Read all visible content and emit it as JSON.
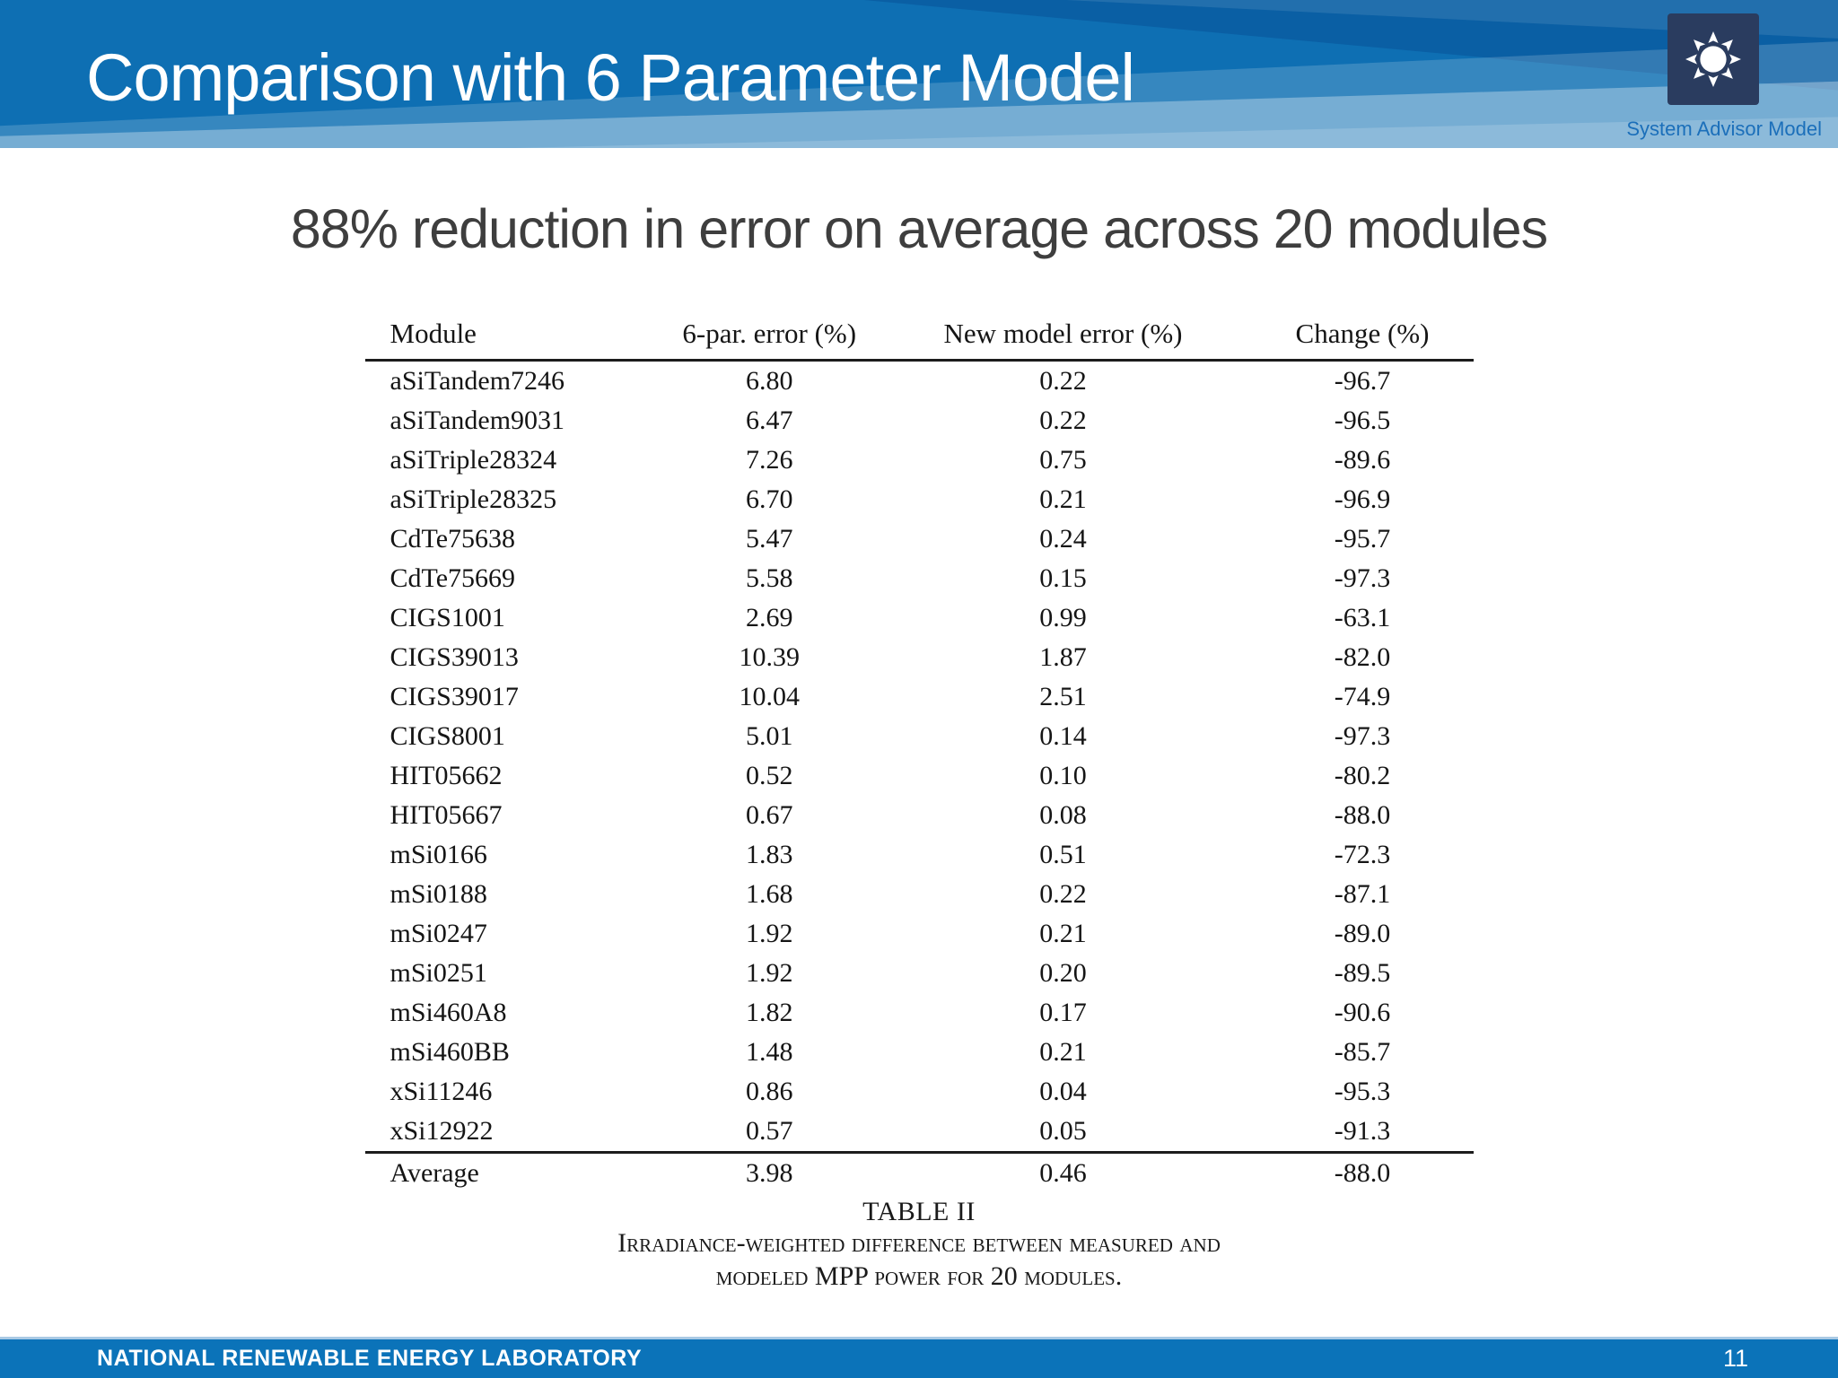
{
  "header": {
    "title": "Comparison with 6 Parameter Model",
    "logo_caption": "System Advisor Model"
  },
  "main": {
    "subtitle": "88% reduction in error on average across 20 modules"
  },
  "table": {
    "columns": [
      "Module",
      "6-par. error (%)",
      "New model error (%)",
      "Change (%)"
    ],
    "rows": [
      [
        "aSiTandem7246",
        "6.80",
        "0.22",
        "-96.7"
      ],
      [
        "aSiTandem9031",
        "6.47",
        "0.22",
        "-96.5"
      ],
      [
        "aSiTriple28324",
        "7.26",
        "0.75",
        "-89.6"
      ],
      [
        "aSiTriple28325",
        "6.70",
        "0.21",
        "-96.9"
      ],
      [
        "CdTe75638",
        "5.47",
        "0.24",
        "-95.7"
      ],
      [
        "CdTe75669",
        "5.58",
        "0.15",
        "-97.3"
      ],
      [
        "CIGS1001",
        "2.69",
        "0.99",
        "-63.1"
      ],
      [
        "CIGS39013",
        "10.39",
        "1.87",
        "-82.0"
      ],
      [
        "CIGS39017",
        "10.04",
        "2.51",
        "-74.9"
      ],
      [
        "CIGS8001",
        "5.01",
        "0.14",
        "-97.3"
      ],
      [
        "HIT05662",
        "0.52",
        "0.10",
        "-80.2"
      ],
      [
        "HIT05667",
        "0.67",
        "0.08",
        "-88.0"
      ],
      [
        "mSi0166",
        "1.83",
        "0.51",
        "-72.3"
      ],
      [
        "mSi0188",
        "1.68",
        "0.22",
        "-87.1"
      ],
      [
        "mSi0247",
        "1.92",
        "0.21",
        "-89.0"
      ],
      [
        "mSi0251",
        "1.92",
        "0.20",
        "-89.5"
      ],
      [
        "mSi460A8",
        "1.82",
        "0.17",
        "-90.6"
      ],
      [
        "mSi460BB",
        "1.48",
        "0.21",
        "-85.7"
      ],
      [
        "xSi11246",
        "0.86",
        "0.04",
        "-95.3"
      ],
      [
        "xSi12922",
        "0.57",
        "0.05",
        "-91.3"
      ]
    ],
    "summary_row": [
      "Average",
      "3.98",
      "0.46",
      "-88.0"
    ],
    "caption_title": "TABLE II",
    "caption_line1": "Irradiance-weighted difference between measured and",
    "caption_line2": "modeled MPP power for 20 modules."
  },
  "footer": {
    "organization": "NATIONAL RENEWABLE ENERGY LABORATORY",
    "page_number": "11"
  },
  "colors": {
    "header_blue": "#0e6fb3",
    "header_dark_blue": "#0a5fa4",
    "header_light_band": "#7fb2dd",
    "footer_blue": "#0b73b9",
    "logo_navy": "#2a3c5f",
    "sam_caption_blue": "#1b6fba",
    "subtitle_gray": "#3e3e3e"
  }
}
